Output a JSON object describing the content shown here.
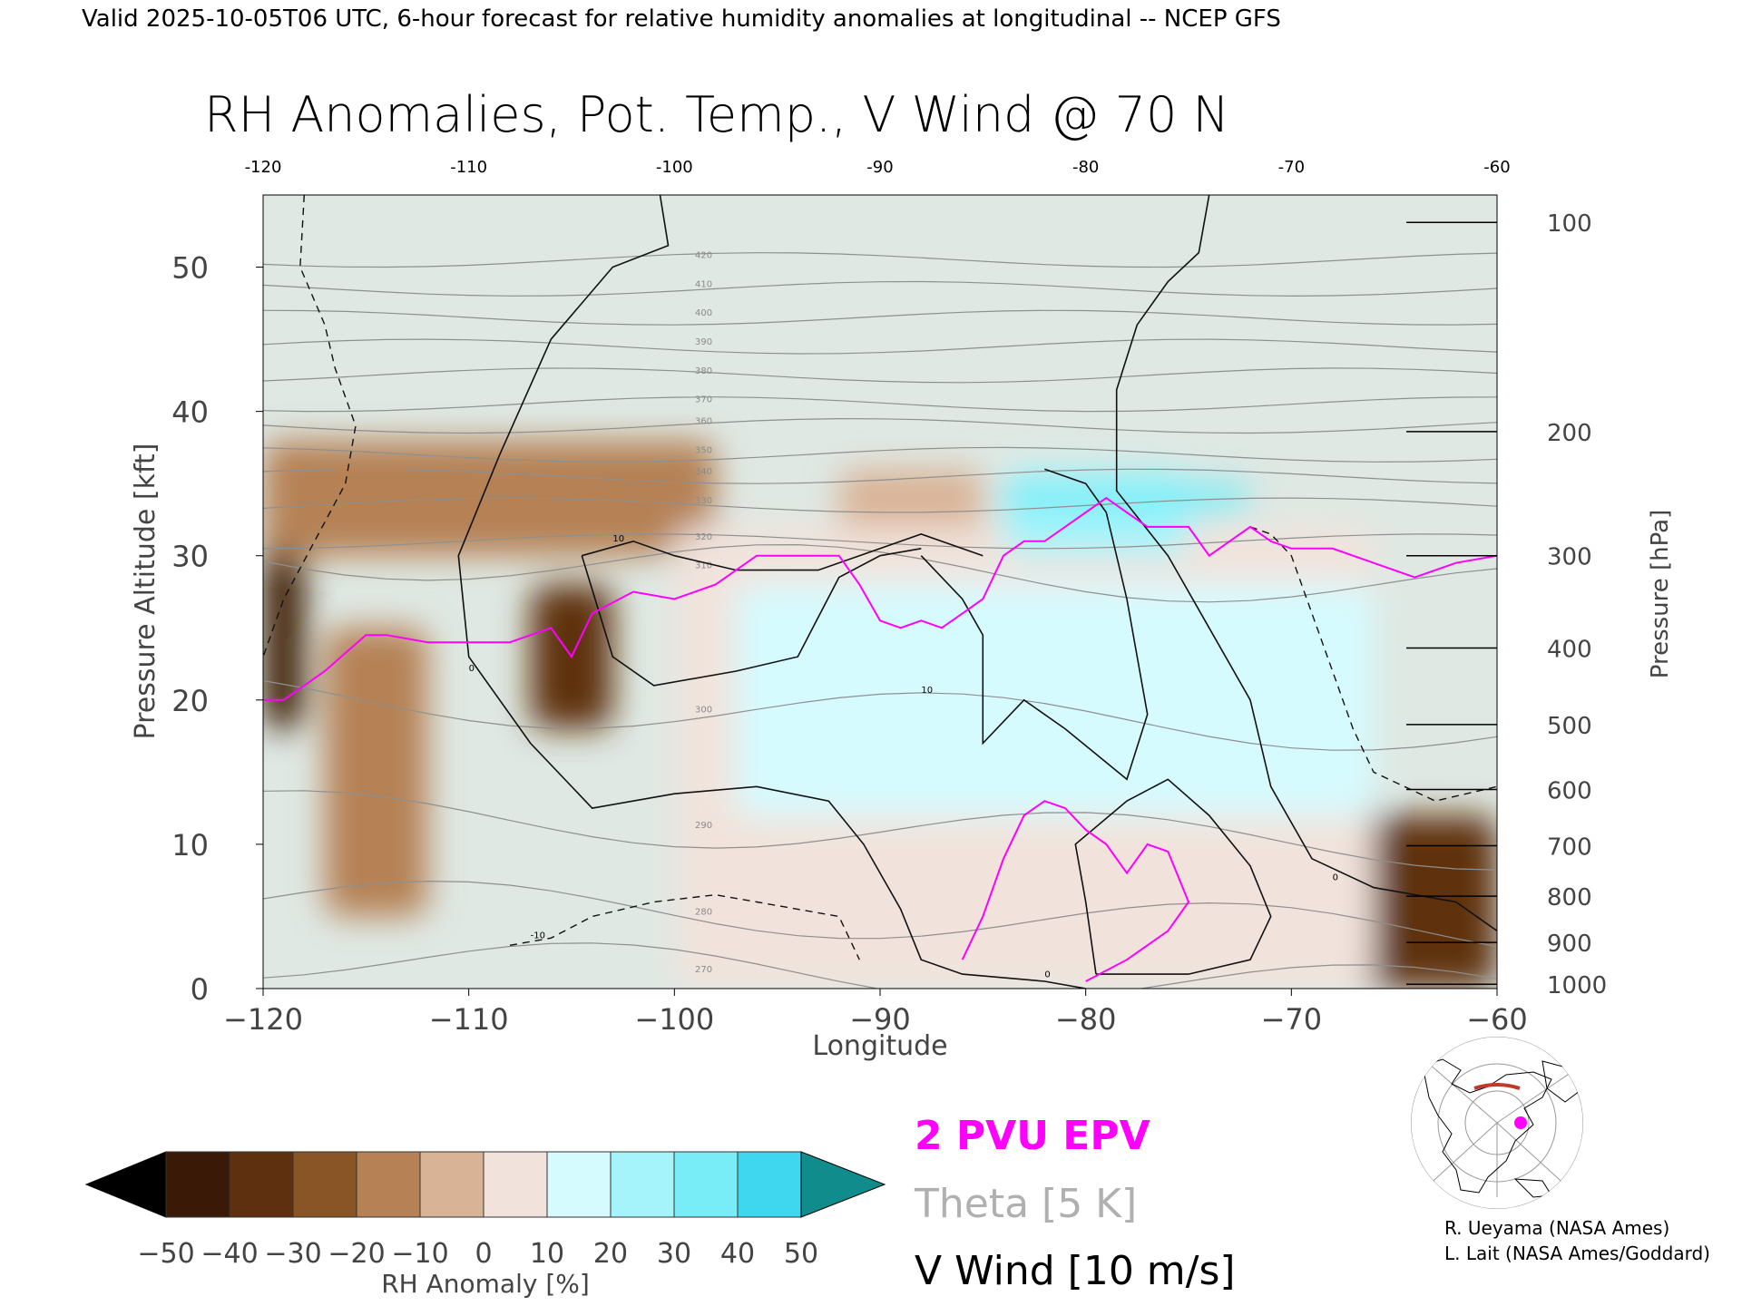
{
  "header": {
    "valid_line": "Valid 2025-10-05T06 UTC, 6-hour forecast for relative humidity anomalies at longitudinal -- NCEP GFS"
  },
  "chart_data": {
    "type": "heatmap",
    "title": "RH Anomalies, Pot. Temp., V Wind @ 70 N",
    "xlabel": "Longitude",
    "ylabel": "Pressure Altitude [kft]",
    "y2label": "Pressure [hPa]",
    "xlim": [
      -120,
      -60
    ],
    "ylim": [
      0,
      55
    ],
    "x_ticks": [
      -120,
      -110,
      -100,
      -90,
      -80,
      -70,
      -60
    ],
    "x_tick_labels": [
      "−120",
      "−110",
      "−100",
      "−90",
      "−80",
      "−70",
      "−60"
    ],
    "top_tick_labels": [
      "-120",
      "-110",
      "-100",
      "-90",
      "-80",
      "-70",
      "-60"
    ],
    "y_ticks": [
      0,
      10,
      20,
      30,
      40,
      50
    ],
    "y_tick_labels": [
      "0",
      "10",
      "20",
      "30",
      "40",
      "50"
    ],
    "pressure_ticks": [
      {
        "hpa": 100,
        "label": "100",
        "kft": 53.1
      },
      {
        "hpa": 200,
        "label": "200",
        "kft": 38.6
      },
      {
        "hpa": 300,
        "label": "300",
        "kft": 30.0
      },
      {
        "hpa": 400,
        "label": "400",
        "kft": 23.6
      },
      {
        "hpa": 500,
        "label": "500",
        "kft": 18.3
      },
      {
        "hpa": 600,
        "label": "600",
        "kft": 13.8
      },
      {
        "hpa": 700,
        "label": "700",
        "kft": 9.9
      },
      {
        "hpa": 800,
        "label": "800",
        "kft": 6.4
      },
      {
        "hpa": 900,
        "label": "900",
        "kft": 3.2
      },
      {
        "hpa": 1000,
        "label": "1000",
        "kft": 0.3
      }
    ],
    "rh_anomaly_regions": [
      {
        "value": -50,
        "lon": [
          -120,
          -118
        ],
        "kft": [
          18,
          32
        ]
      },
      {
        "value": -40,
        "lon": [
          -107,
          -103
        ],
        "kft": [
          18,
          28
        ]
      },
      {
        "value": -20,
        "lon": [
          -120,
          -98
        ],
        "kft": [
          30,
          38
        ]
      },
      {
        "value": -20,
        "lon": [
          -117,
          -112
        ],
        "kft": [
          5,
          25
        ]
      },
      {
        "value": -40,
        "lon": [
          -68,
          -60
        ],
        "kft": [
          0,
          12
        ]
      },
      {
        "value": -10,
        "lon": [
          -92,
          -85
        ],
        "kft": [
          28,
          36
        ]
      },
      {
        "value": 10,
        "lon": [
          -100,
          -66
        ],
        "kft": [
          0,
          32
        ]
      },
      {
        "value": 20,
        "lon": [
          -97,
          -66
        ],
        "kft": [
          12,
          28
        ]
      },
      {
        "value": 30,
        "lon": [
          -84,
          -75
        ],
        "kft": [
          30,
          36
        ]
      },
      {
        "value": 40,
        "lon": [
          -84,
          -72
        ],
        "kft": [
          33,
          35
        ]
      }
    ],
    "theta_contours_K": [
      {
        "theta": 270,
        "kft": 1
      },
      {
        "theta": 280,
        "kft": 5
      },
      {
        "theta": 290,
        "kft": 11
      },
      {
        "theta": 300,
        "kft": 19
      },
      {
        "theta": 310,
        "kft": 29
      },
      {
        "theta": 320,
        "kft": 31
      },
      {
        "theta": 330,
        "kft": 33.5
      },
      {
        "theta": 340,
        "kft": 35.5
      },
      {
        "theta": 350,
        "kft": 37
      },
      {
        "theta": 360,
        "kft": 39
      },
      {
        "theta": 370,
        "kft": 40.5
      },
      {
        "theta": 380,
        "kft": 42.5
      },
      {
        "theta": 390,
        "kft": 44.5
      },
      {
        "theta": 400,
        "kft": 46.5
      },
      {
        "theta": 410,
        "kft": 48.5
      },
      {
        "theta": 420,
        "kft": 50.5
      }
    ],
    "theta_labels": [
      "270",
      "280",
      "290",
      "300",
      "310",
      "320",
      "330",
      "340",
      "350",
      "360",
      "370",
      "380",
      "390",
      "400",
      "410",
      "420"
    ],
    "vwind_contour_labels": [
      "0",
      "10",
      "-10"
    ],
    "pv2_line": {
      "lon": [
        -120,
        -119,
        -117,
        -115,
        -114,
        -112,
        -110,
        -108,
        -106,
        -105,
        -104,
        -102,
        -100,
        -98,
        -96,
        -94,
        -92,
        -91,
        -90,
        -89,
        -88,
        -87,
        -86,
        -85,
        -84,
        -83,
        -82,
        -81,
        -80,
        -79,
        -78,
        -77,
        -76,
        -75,
        -74,
        -73,
        -72,
        -71,
        -70,
        -69,
        -68,
        -66,
        -64,
        -62,
        -60
      ],
      "kft": [
        20,
        20,
        22,
        24.5,
        24.5,
        24,
        24,
        24,
        25,
        23,
        26,
        27.5,
        27,
        28,
        30,
        30,
        30,
        28,
        25.5,
        25,
        25.5,
        25,
        26,
        27,
        30,
        31,
        31,
        32,
        33,
        34,
        33,
        32,
        32,
        32,
        30,
        31,
        32,
        31,
        30.5,
        30.5,
        30.5,
        29.5,
        28.5,
        29.5,
        30
      ]
    },
    "colorbar": {
      "label": "RH Anomaly [%]",
      "tick_labels": [
        "−50",
        "−40",
        "−30",
        "−20",
        "−10",
        "0",
        "10",
        "20",
        "30",
        "40",
        "50"
      ],
      "colors": [
        "#3a1a06",
        "#5e3010",
        "#8a5526",
        "#b58155",
        "#d9b396",
        "#f1e3dc",
        "#d6fbff",
        "#a6f4fb",
        "#78edf7",
        "#3fd6f0",
        "#19b6d8"
      ],
      "under_color": "#000000",
      "over_color": "#108c8c"
    }
  },
  "legend": {
    "epv": "2 PVU EPV",
    "theta": "Theta [5 K]",
    "vwind": "V Wind [10 m/s]",
    "epv_color": "#ff00ff",
    "theta_color": "#aaaaaa",
    "vwind_color": "#000000"
  },
  "credits": {
    "line1": "R. Ueyama (NASA Ames)",
    "line2": "L. Lait (NASA Ames/Goddard)"
  },
  "inset_map": {
    "icon": "polar-stereographic-map-icon"
  }
}
